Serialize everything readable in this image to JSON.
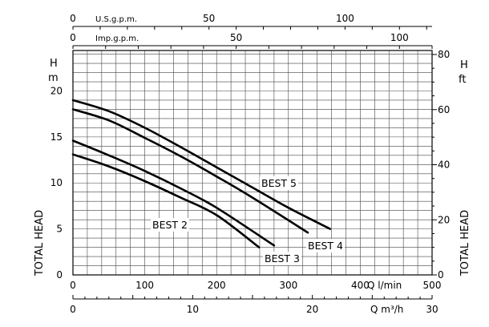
{
  "chart_data": {
    "type": "line",
    "axes": {
      "x_bottom": {
        "label": "Q l/min",
        "ticks": [
          "0",
          "100",
          "200",
          "300",
          "400",
          "500"
        ],
        "range": [
          0,
          500
        ]
      },
      "x_bottom2": {
        "label": "Q m³/h",
        "ticks": [
          "0",
          "10",
          "20",
          "30"
        ],
        "range": [
          0,
          30
        ]
      },
      "x_top_usgpm": {
        "label": "U.S.g.p.m.",
        "ticks": [
          "0",
          "50",
          "100"
        ],
        "range": [
          0,
          132
        ]
      },
      "x_top_impgpm": {
        "label": "Imp.g.p.m.",
        "ticks": [
          "0",
          "50",
          "100"
        ],
        "range": [
          0,
          110
        ]
      },
      "y_left": {
        "label_rotated": "TOTAL HEAD",
        "unit_top": [
          "H",
          "m"
        ],
        "ticks": [
          "0",
          "5",
          "10",
          "15",
          "20"
        ],
        "range": [
          0,
          24.4
        ]
      },
      "y_right": {
        "label_rotated": "TOTAL HEAD",
        "unit_top": [
          "H",
          "ft"
        ],
        "ticks": [
          "0",
          "20",
          "40",
          "60",
          "80"
        ],
        "range": [
          0,
          80
        ]
      }
    },
    "grid": true,
    "series": [
      {
        "name": "BEST 2",
        "points": [
          [
            0,
            13.1
          ],
          [
            50,
            11.8
          ],
          [
            100,
            10.2
          ],
          [
            150,
            8.4
          ],
          [
            200,
            6.5
          ],
          [
            259,
            3.0
          ]
        ]
      },
      {
        "name": "BEST 3",
        "points": [
          [
            0,
            14.6
          ],
          [
            50,
            13.0
          ],
          [
            100,
            11.3
          ],
          [
            150,
            9.4
          ],
          [
            200,
            7.3
          ],
          [
            280,
            3.2
          ]
        ]
      },
      {
        "name": "BEST 4",
        "points": [
          [
            0,
            18.0
          ],
          [
            50,
            16.8
          ],
          [
            100,
            14.9
          ],
          [
            150,
            12.9
          ],
          [
            200,
            10.7
          ],
          [
            250,
            8.4
          ],
          [
            327,
            4.6
          ]
        ]
      },
      {
        "name": "BEST 5",
        "points": [
          [
            0,
            19.0
          ],
          [
            50,
            17.8
          ],
          [
            100,
            16.0
          ],
          [
            150,
            13.9
          ],
          [
            200,
            11.7
          ],
          [
            250,
            9.5
          ],
          [
            300,
            7.3
          ],
          [
            358,
            5.0
          ]
        ]
      }
    ]
  }
}
